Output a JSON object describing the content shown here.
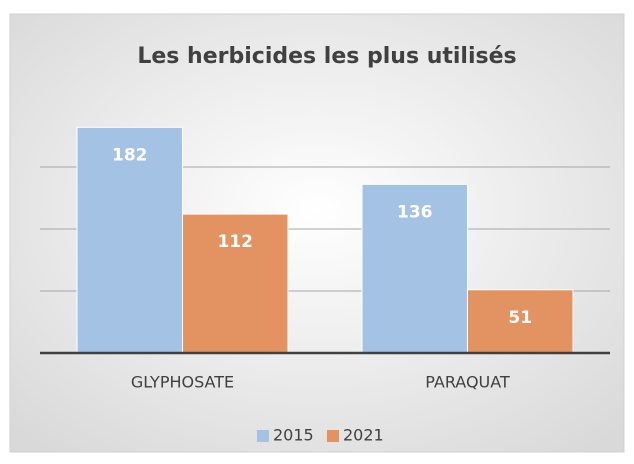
{
  "chart_data": {
    "type": "bar",
    "title": "Les herbicides les plus utilisés",
    "categories": [
      "GLYPHOSATE",
      "PARAQUAT"
    ],
    "series": [
      {
        "name": "2015",
        "color": "#a4c2e3",
        "values": [
          182,
          136
        ]
      },
      {
        "name": "2021",
        "color": "#e39362",
        "values": [
          112,
          51
        ]
      }
    ],
    "ylim": [
      0,
      200
    ],
    "yticks": [
      0,
      50,
      100,
      150
    ],
    "grid": true,
    "legend": "bottom"
  }
}
